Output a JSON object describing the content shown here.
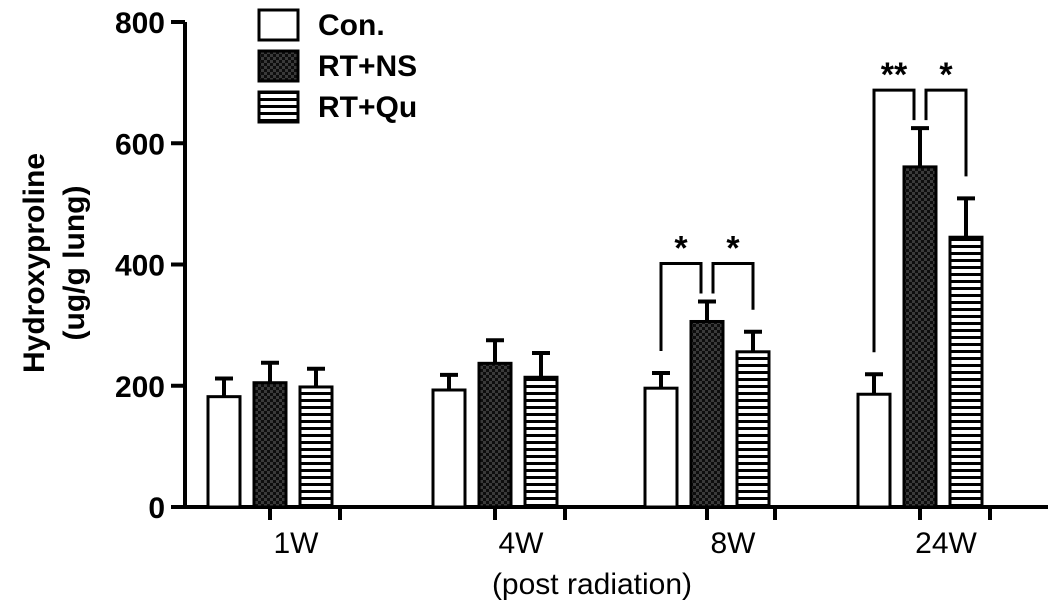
{
  "chart_data": {
    "type": "bar",
    "xlabel": "(post radiation)",
    "ylabel_lines": [
      "Hydroxyproline",
      "(ug/g lung)"
    ],
    "ylim": [
      0,
      800
    ],
    "yticks": [
      "0",
      "200",
      "400",
      "600",
      "800"
    ],
    "categories": [
      "1W",
      "4W",
      "8W",
      "24W"
    ],
    "series": [
      {
        "name": "Con.",
        "pattern": "white",
        "values": [
          182,
          193,
          196,
          186
        ],
        "errors": [
          30,
          25,
          25,
          33
        ]
      },
      {
        "name": "RT+NS",
        "pattern": "checker",
        "values": [
          205,
          237,
          306,
          561
        ],
        "errors": [
          33,
          38,
          33,
          64
        ]
      },
      {
        "name": "RT+Qu",
        "pattern": "hstripe",
        "values": [
          198,
          214,
          256,
          445
        ],
        "errors": [
          30,
          40,
          33,
          64
        ]
      }
    ],
    "significance": [
      {
        "category": "8W",
        "from_series": 0,
        "to_series": 1,
        "label": "*"
      },
      {
        "category": "8W",
        "from_series": 1,
        "to_series": 2,
        "label": "*"
      },
      {
        "category": "24W",
        "from_series": 0,
        "to_series": 1,
        "label": "**"
      },
      {
        "category": "24W",
        "from_series": 1,
        "to_series": 2,
        "label": "*"
      }
    ],
    "legend_position": "top-left"
  },
  "colors": {
    "axis": "#000000",
    "bar_fill_white": "#ffffff",
    "bar_fill_dark": "#1a1a1a"
  }
}
